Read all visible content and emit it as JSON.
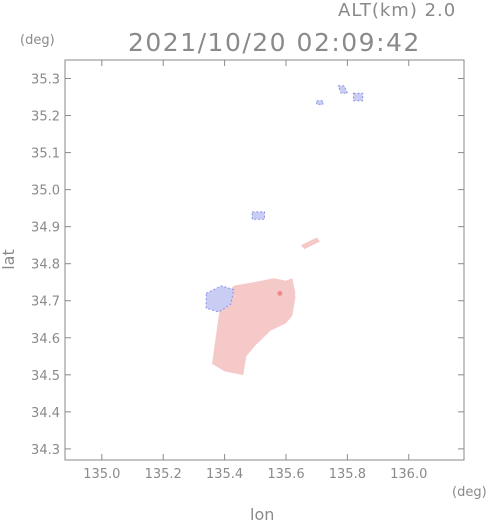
{
  "header": {
    "altitude_label": "ALT(km) 2.0",
    "timestamp": "2021/10/20 02:09:42"
  },
  "axes": {
    "y_unit": "(deg)",
    "x_unit": "(deg)",
    "y_label": "lat",
    "x_label": "lon"
  },
  "chart_data": {
    "type": "heatmap",
    "xlabel": "lon",
    "ylabel": "lat",
    "xlim": [
      134.88,
      136.18
    ],
    "ylim": [
      34.27,
      35.35
    ],
    "x_ticks": [
      135.0,
      135.2,
      135.4,
      135.6,
      135.8,
      136.0
    ],
    "x_tick_labels": [
      "135.0",
      "135.2",
      "135.4",
      "135.6",
      "135.8",
      "136.0"
    ],
    "y_ticks": [
      34.3,
      34.4,
      34.5,
      34.6,
      34.7,
      34.8,
      34.9,
      35.0,
      35.1,
      35.2,
      35.3
    ],
    "y_tick_labels": [
      "34.3",
      "34.4",
      "34.5",
      "34.6",
      "34.7",
      "34.8",
      "34.9",
      "35.0",
      "35.1",
      "35.2",
      "35.3"
    ],
    "grid": false,
    "colors": {
      "positive": "#f6c9c9",
      "positive_strong": "#f08a8a",
      "negative": "#c9cdf4",
      "negative_edge": "#8a8fe6"
    },
    "regions": [
      {
        "name": "main-positive",
        "polarity": "positive",
        "polygon": [
          [
            135.43,
            34.74
          ],
          [
            135.5,
            34.75
          ],
          [
            135.56,
            34.76
          ],
          [
            135.62,
            34.75
          ],
          [
            135.63,
            34.71
          ],
          [
            135.62,
            34.66
          ],
          [
            135.6,
            34.64
          ],
          [
            135.55,
            34.62
          ],
          [
            135.5,
            34.58
          ],
          [
            135.47,
            34.55
          ],
          [
            135.46,
            34.5
          ],
          [
            135.4,
            34.51
          ],
          [
            135.36,
            34.53
          ],
          [
            135.37,
            34.59
          ],
          [
            135.38,
            34.65
          ],
          [
            135.39,
            34.7
          ]
        ]
      },
      {
        "name": "east-lobe-positive",
        "polarity": "positive",
        "polygon": [
          [
            135.56,
            34.74
          ],
          [
            135.62,
            34.76
          ],
          [
            135.63,
            34.72
          ],
          [
            135.6,
            34.69
          ],
          [
            135.57,
            34.7
          ]
        ]
      },
      {
        "name": "northeast-strip-positive",
        "polarity": "positive",
        "polygon": [
          [
            135.65,
            34.85
          ],
          [
            135.7,
            34.87
          ],
          [
            135.71,
            34.86
          ],
          [
            135.66,
            34.84
          ]
        ]
      },
      {
        "name": "west-negative",
        "polarity": "negative",
        "polygon": [
          [
            135.34,
            34.72
          ],
          [
            135.39,
            34.74
          ],
          [
            135.43,
            34.73
          ],
          [
            135.42,
            34.69
          ],
          [
            135.38,
            34.67
          ],
          [
            135.34,
            34.68
          ]
        ]
      },
      {
        "name": "north-negative-1",
        "polarity": "negative",
        "polygon": [
          [
            135.49,
            34.94
          ],
          [
            135.53,
            34.94
          ],
          [
            135.53,
            34.92
          ],
          [
            135.49,
            34.92
          ]
        ]
      },
      {
        "name": "north-negative-2",
        "polarity": "negative",
        "polygon": [
          [
            135.7,
            35.24
          ],
          [
            135.72,
            35.24
          ],
          [
            135.72,
            35.23
          ],
          [
            135.7,
            35.23
          ]
        ]
      },
      {
        "name": "north-negative-3",
        "polarity": "negative",
        "polygon": [
          [
            135.77,
            35.28
          ],
          [
            135.79,
            35.28
          ],
          [
            135.8,
            35.26
          ],
          [
            135.78,
            35.26
          ]
        ]
      },
      {
        "name": "north-negative-4",
        "polarity": "negative",
        "polygon": [
          [
            135.82,
            35.26
          ],
          [
            135.85,
            35.26
          ],
          [
            135.85,
            35.24
          ],
          [
            135.82,
            35.24
          ]
        ]
      }
    ],
    "hotspot": {
      "lon": 135.58,
      "lat": 34.72
    }
  }
}
